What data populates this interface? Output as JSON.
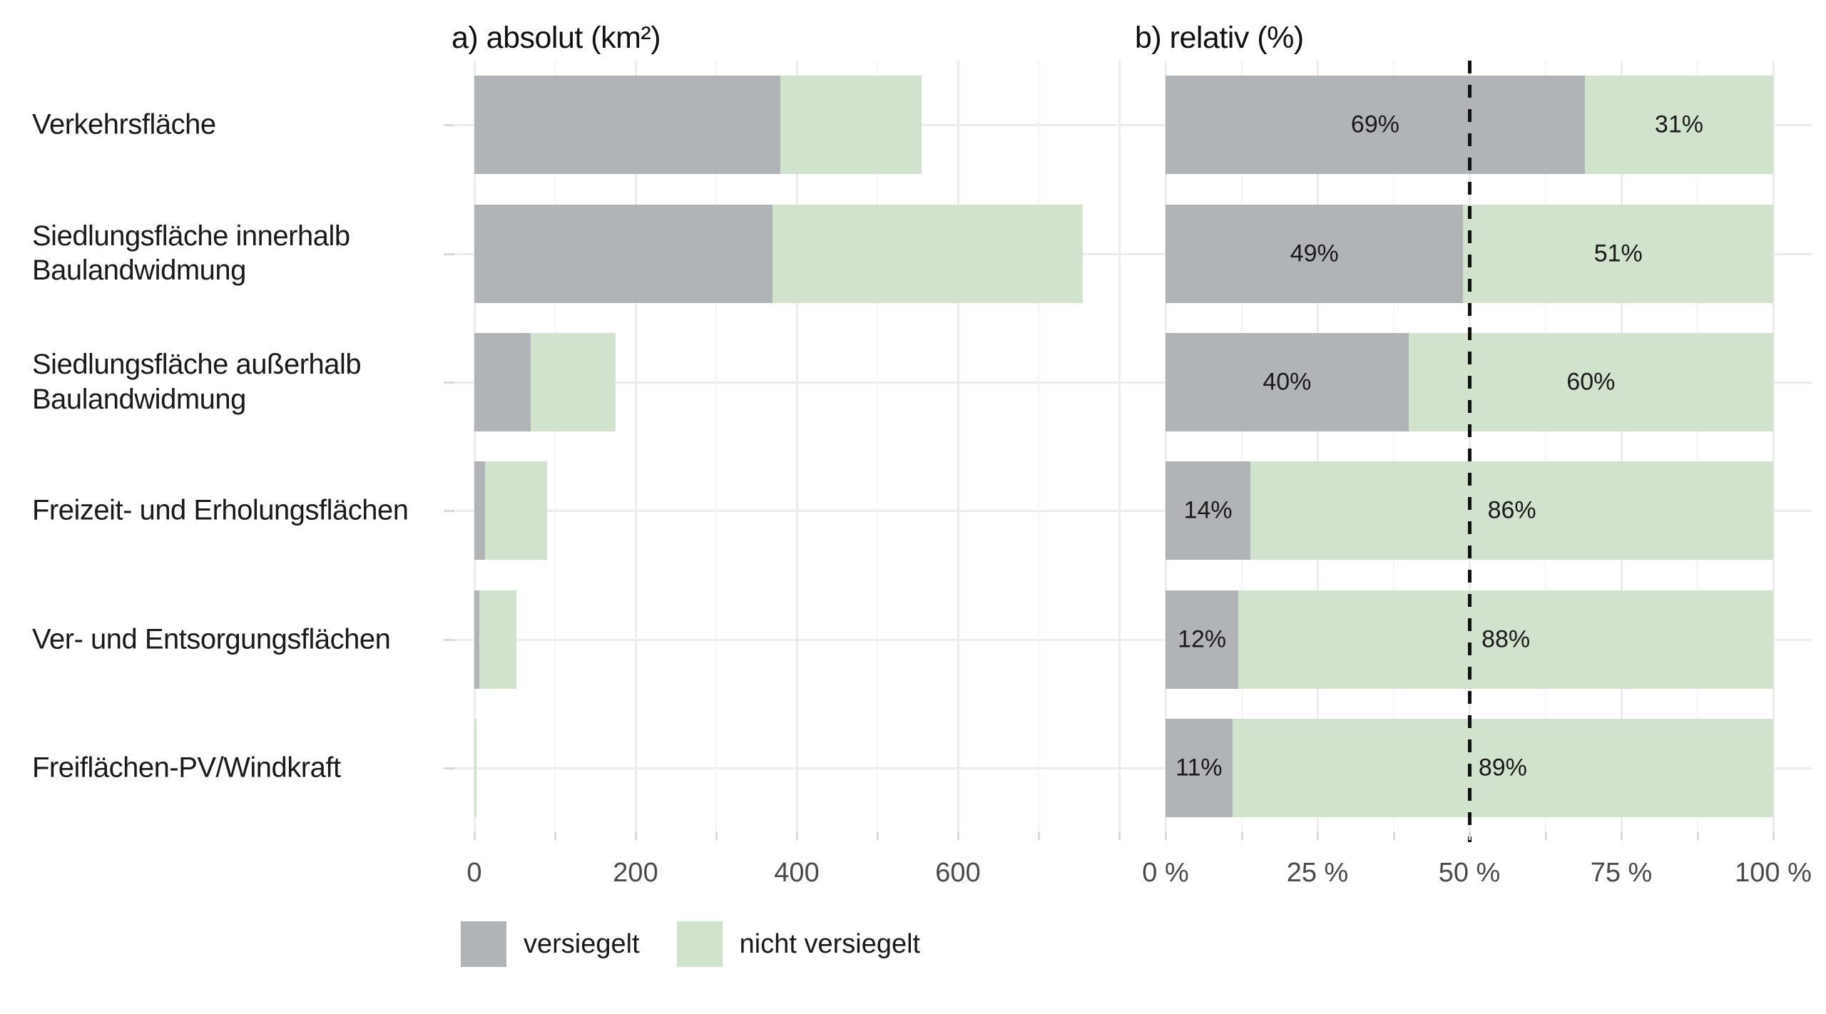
{
  "page": {
    "background": "#ffffff"
  },
  "panels": {
    "absolute": {
      "title": "a) absolut (km²)"
    },
    "relative": {
      "title": "b) relativ (%)"
    }
  },
  "categories": [
    "Verkehrsfläche",
    "Siedlungsfläche innerhalb\nBaulandwidmung",
    "Siedlungsfläche außerhalb\nBaulandwidmung",
    "Freizeit- und Erholungsflächen",
    "Ver- und Entsorgungsflächen",
    "Freiflächen-PV/Windkraft"
  ],
  "legend": {
    "items": [
      {
        "label": "versiegelt",
        "color": "#b1b4b6"
      },
      {
        "label": "nicht versiegelt",
        "color": "#d1e2cd"
      }
    ]
  },
  "colors": {
    "versiegelt": "#b1b4b6",
    "nicht_versiegelt": "#d1e2cd",
    "grid_major": "#ececec",
    "grid_minor": "#f4f4f4",
    "tick": "#d9d9d9",
    "axis_text": "#4a4a4a",
    "text": "#1a1a1a",
    "reference_line": "#111111"
  },
  "chart_data": [
    {
      "type": "bar",
      "orientation": "horizontal",
      "stacked": true,
      "title": "a) absolut (km²)",
      "categories": [
        "Verkehrsfläche",
        "Siedlungsfläche innerhalb Baulandwidmung",
        "Siedlungsfläche außerhalb Baulandwidmung",
        "Freizeit- und Erholungsflächen",
        "Ver- und Entsorgungsflächen",
        "Freiflächen-PV/Windkraft"
      ],
      "series": [
        {
          "name": "versiegelt",
          "values": [
            380,
            370,
            70,
            13,
            6,
            0.3
          ]
        },
        {
          "name": "nicht versiegelt",
          "values": [
            175,
            385,
            105,
            77,
            46,
            2.4
          ]
        }
      ],
      "totals": [
        555,
        755,
        175,
        90,
        52,
        2.7
      ],
      "xlabel": "km²",
      "xlim": [
        0,
        820
      ],
      "xticks": {
        "values": [
          0,
          200,
          400,
          600
        ],
        "labels": [
          "0",
          "200",
          "400",
          "600"
        ]
      },
      "minor_tick_step": 100,
      "grid": true,
      "values_note": "segment lengths estimated from pixels; no numeric labels shown in this panel"
    },
    {
      "type": "bar",
      "orientation": "horizontal",
      "stacked": true,
      "title": "b) relativ (%)",
      "categories": [
        "Verkehrsfläche",
        "Siedlungsfläche innerhalb Baulandwidmung",
        "Siedlungsfläche außerhalb Baulandwidmung",
        "Freizeit- und Erholungsflächen",
        "Ver- und Entsorgungsflächen",
        "Freiflächen-PV/Windkraft"
      ],
      "series": [
        {
          "name": "versiegelt",
          "values": [
            69,
            49,
            40,
            14,
            12,
            11
          ],
          "labels": [
            "69%",
            "49%",
            "40%",
            "14%",
            "12%",
            "11%"
          ]
        },
        {
          "name": "nicht versiegelt",
          "values": [
            31,
            51,
            60,
            86,
            88,
            89
          ],
          "labels": [
            "31%",
            "51%",
            "60%",
            "86%",
            "88%",
            "89%"
          ]
        }
      ],
      "xlabel": "%",
      "xlim": [
        0,
        100
      ],
      "xticks": {
        "values": [
          0,
          25,
          50,
          75,
          100
        ],
        "labels": [
          "0 %",
          "25 %",
          "50 %",
          "75 %",
          "100 %"
        ]
      },
      "minor_tick_step": 12.5,
      "grid": true,
      "reference_line": {
        "value": 50,
        "style": "dashed",
        "color": "#111111"
      }
    }
  ]
}
